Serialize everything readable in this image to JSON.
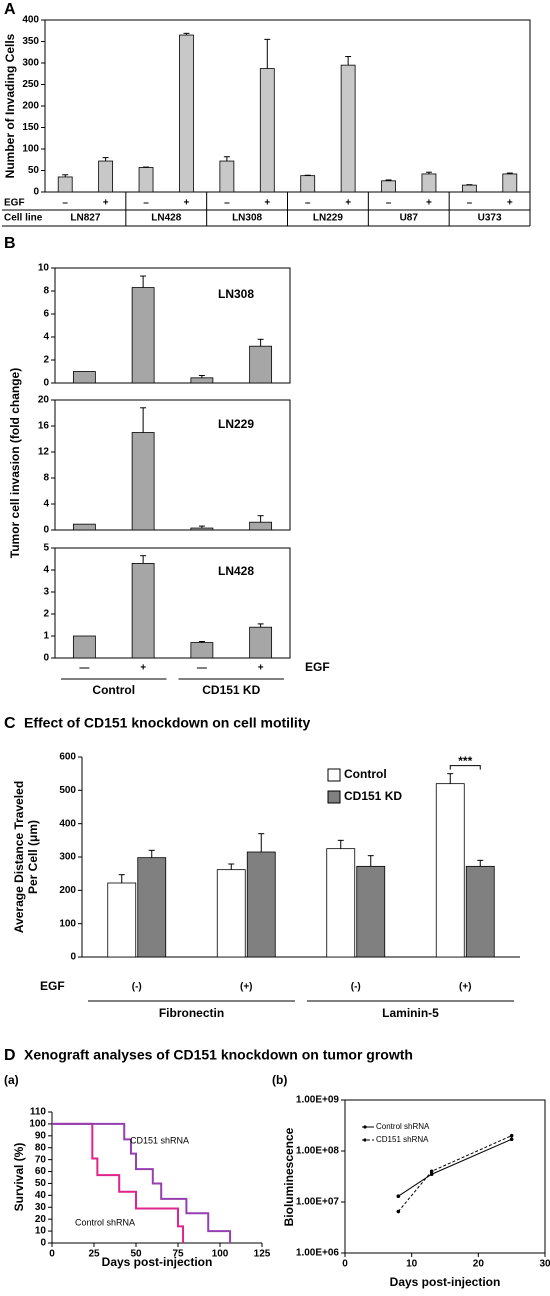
{
  "chart_data": [
    {
      "type": "bar",
      "panel_label": "A",
      "y_label": "Number of Invading Cells",
      "ylim": [
        0,
        400
      ],
      "yticks": [
        0,
        50,
        100,
        150,
        200,
        250,
        300,
        350,
        400
      ],
      "row_labels": [
        "EGF",
        "Cell line"
      ],
      "categories": [
        "–",
        "+",
        "–",
        "+",
        "–",
        "+",
        "–",
        "+",
        "–",
        "+",
        "–",
        "+"
      ],
      "groups": [
        "LN827",
        "LN428",
        "LN308",
        "LN229",
        "U87",
        "U373"
      ],
      "values": [
        35,
        72,
        57,
        365,
        72,
        287,
        38,
        295,
        26,
        42,
        16,
        42
      ],
      "errors": [
        5,
        8,
        1,
        4,
        10,
        68,
        1,
        20,
        2,
        4,
        1,
        2
      ],
      "color": "#c8c8c8"
    },
    {
      "type": "bar",
      "panel_label": "B",
      "y_label": "Tumor cell invasion (fold change)",
      "name": "LN308",
      "ylim": [
        0,
        10
      ],
      "yticks": [
        0,
        2,
        4,
        6,
        8,
        10
      ],
      "values": [
        1,
        8.3,
        0.45,
        3.2
      ],
      "errors": [
        0,
        1.0,
        0.2,
        0.6
      ],
      "color": "#a6a6a6"
    },
    {
      "type": "bar",
      "name": "LN229",
      "ylim": [
        0,
        20
      ],
      "yticks": [
        0,
        4,
        8,
        12,
        16,
        20
      ],
      "values": [
        0.9,
        15,
        0.3,
        1.2
      ],
      "errors": [
        0,
        3.8,
        0.3,
        1.0
      ],
      "color": "#a6a6a6"
    },
    {
      "type": "bar",
      "name": "LN428",
      "ylim": [
        0,
        5
      ],
      "yticks": [
        0,
        1,
        2,
        3,
        4,
        5
      ],
      "categories": [
        "—",
        "+",
        "—",
        "+"
      ],
      "x_row_label": "EGF",
      "groups": [
        "Control",
        "CD151 KD"
      ],
      "values": [
        1.0,
        4.3,
        0.7,
        1.4
      ],
      "errors": [
        0,
        0.35,
        0.05,
        0.15
      ],
      "color": "#a6a6a6"
    },
    {
      "type": "bar",
      "panel_label": "C",
      "title": "Effect of CD151 knockdown on cell motility",
      "y_label": [
        "Average Distance Traveled",
        "Per Cell (μm)"
      ],
      "ylim": [
        0,
        600
      ],
      "yticks": [
        0,
        100,
        200,
        300,
        400,
        500,
        600
      ],
      "categories": [
        "(-)",
        "(+)",
        "(-)",
        "(+)"
      ],
      "x_row_label": "EGF",
      "groups": [
        "Fibronectin",
        "Laminin-5"
      ],
      "annotation": "***",
      "series": [
        {
          "name": "Control",
          "color": "#ffffff",
          "values": [
            222,
            262,
            325,
            520
          ],
          "errors": [
            25,
            17,
            25,
            30
          ]
        },
        {
          "name": "CD151 KD",
          "color": "#808080",
          "values": [
            298,
            315,
            272,
            272
          ],
          "errors": [
            22,
            55,
            32,
            18
          ]
        }
      ]
    },
    {
      "type": "step",
      "panel_label": "(a)",
      "section_label": "D",
      "title": "Xenograft analyses of CD151 knockdown on tumor growth",
      "x_label": "Days post-injection",
      "y_label": "Survival (%)",
      "xlim": [
        0,
        125
      ],
      "xticks": [
        0,
        25,
        50,
        75,
        100,
        125
      ],
      "ylim": [
        0,
        110
      ],
      "yticks": [
        0,
        10,
        20,
        30,
        40,
        50,
        60,
        70,
        80,
        90,
        100,
        110
      ],
      "series": [
        {
          "name": "Control shRNA",
          "color": "#e0248c",
          "x": [
            0,
            24,
            24,
            27,
            27,
            40,
            40,
            50,
            50,
            75,
            75,
            78,
            78
          ],
          "y": [
            100,
            100,
            71,
            71,
            57,
            57,
            43,
            43,
            29,
            29,
            14,
            14,
            0
          ]
        },
        {
          "name": "CD151 shRNA",
          "color": "#9440b0",
          "x": [
            0,
            43,
            43,
            47,
            47,
            50,
            50,
            60,
            60,
            65,
            65,
            80,
            80,
            93,
            93,
            106,
            106
          ],
          "y": [
            100,
            100,
            87,
            87,
            75,
            75,
            62,
            62,
            50,
            50,
            37,
            37,
            25,
            25,
            10,
            10,
            0
          ]
        }
      ]
    },
    {
      "type": "line",
      "panel_label": "(b)",
      "x_label": "Days post-injection",
      "y_label": "Bioluminescence",
      "log_y": true,
      "xlim": [
        0,
        30
      ],
      "xticks": [
        0,
        10,
        20,
        30
      ],
      "ylim": [
        1000000,
        1000000000
      ],
      "yticks": [
        {
          "value": 1000000,
          "label": "1.00E+06"
        },
        {
          "value": 10000000,
          "label": "1.00E+07"
        },
        {
          "value": 100000000,
          "label": "1.00E+08"
        },
        {
          "value": 1000000000,
          "label": "1.00E+09"
        }
      ],
      "series": [
        {
          "name": "Control shRNA",
          "color": "#000000",
          "x": [
            8,
            13,
            25
          ],
          "y": [
            13000000,
            35000000,
            170000000
          ]
        },
        {
          "name": "CD151 shRNA",
          "color": "#000000",
          "dashed": true,
          "x": [
            8,
            13,
            25
          ],
          "y": [
            6500000,
            40000000,
            200000000
          ]
        }
      ]
    }
  ]
}
